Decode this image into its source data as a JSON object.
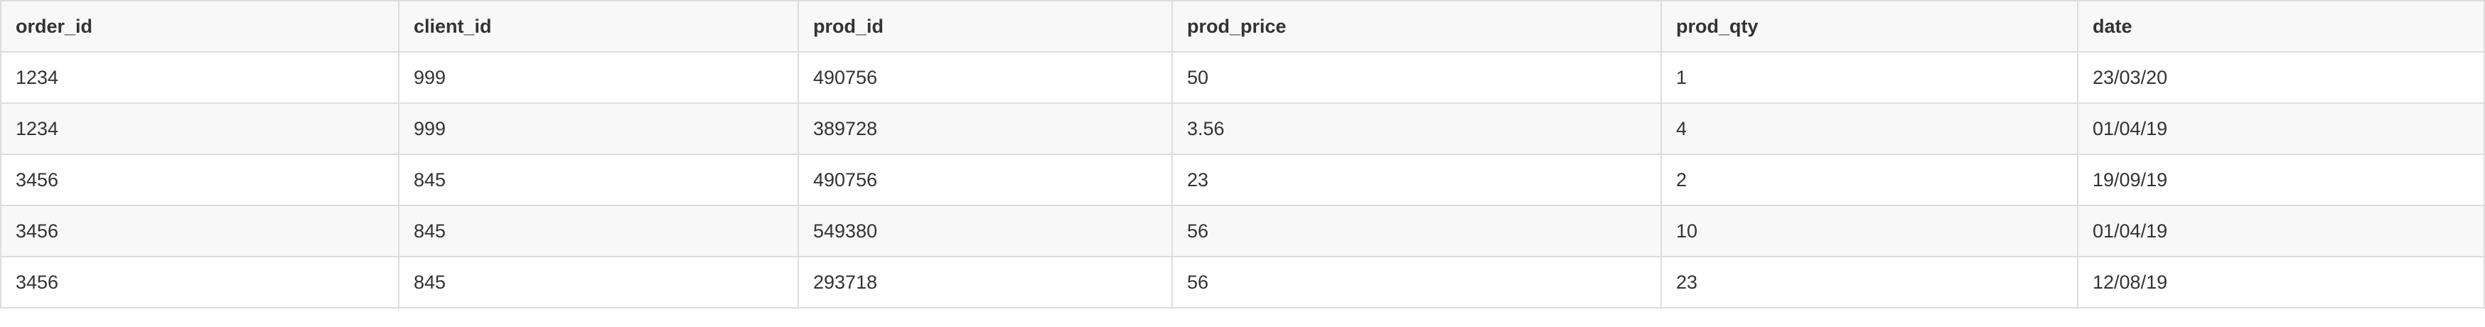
{
  "table": {
    "headers": [
      "order_id",
      "client_id",
      "prod_id",
      "prod_price",
      "prod_qty",
      "date"
    ],
    "rows": [
      [
        "1234",
        "999",
        "490756",
        "50",
        "1",
        "23/03/20"
      ],
      [
        "1234",
        "999",
        "389728",
        "3.56",
        "4",
        "01/04/19"
      ],
      [
        "3456",
        "845",
        "490756",
        "23",
        "2",
        "19/09/19"
      ],
      [
        "3456",
        "845",
        "549380",
        "56",
        "10",
        "01/04/19"
      ],
      [
        "3456",
        "845",
        "293718",
        "56",
        "23",
        "12/08/19"
      ]
    ]
  },
  "colors": {
    "border": "#dddddd",
    "header_bg": "#f8f8f8",
    "stripe_bg": "#f8f8f8",
    "text": "#333333"
  }
}
